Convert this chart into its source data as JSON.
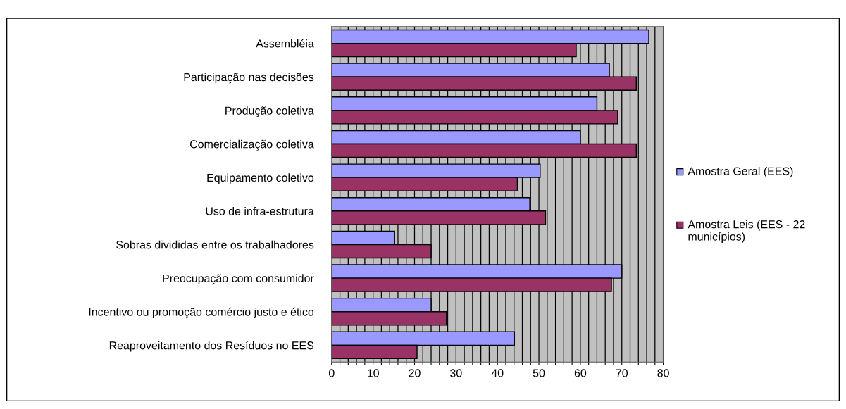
{
  "chart_data": {
    "type": "bar",
    "orientation": "horizontal",
    "categories": [
      "Assembléia",
      "Participação nas decisões",
      "Produção coletiva",
      "Comercialização coletiva",
      "Equipamento coletivo",
      "Uso de infra-estrutura",
      "Sobras divididas entre os trabalhadores",
      "Preocupação com consumidor",
      "Incentivo ou promoção comércio justo e ético",
      "Reaproveitamento dos Resíduos no EES"
    ],
    "series": [
      {
        "name": "Amostra Geral (EES)",
        "color": "#9999ff",
        "values": [
          76.5,
          67,
          64,
          60,
          50.3,
          47.8,
          15.2,
          70,
          24,
          44.1
        ]
      },
      {
        "name": "Amostra Leis (EES - 22 municípios)",
        "color": "#993366",
        "values": [
          59,
          73.5,
          69,
          73.5,
          44.8,
          51.6,
          24,
          67.5,
          27.7,
          20.6
        ]
      }
    ],
    "xlim": [
      0,
      80
    ],
    "xticks": [
      0,
      {
        "value": 2,
        "label": null
      },
      {
        "value": 4,
        "label": null
      },
      {
        "value": 6,
        "label": null
      },
      {
        "value": 8,
        "label": null
      },
      10,
      {
        "value": 12,
        "label": null
      },
      {
        "value": 14,
        "label": null
      },
      {
        "value": 16,
        "label": null
      },
      {
        "value": 18,
        "label": null
      },
      20,
      {
        "value": 22,
        "label": null
      },
      {
        "value": 24,
        "label": null
      },
      {
        "value": 26,
        "label": null
      },
      {
        "value": 28,
        "label": null
      },
      30,
      {
        "value": 32,
        "label": null
      },
      {
        "value": 34,
        "label": null
      },
      {
        "value": 36,
        "label": null
      },
      {
        "value": 38,
        "label": null
      },
      40,
      {
        "value": 42,
        "label": null
      },
      {
        "value": 44,
        "label": null
      },
      {
        "value": 46,
        "label": null
      },
      {
        "value": 48,
        "label": null
      },
      50,
      {
        "value": 52,
        "label": null
      },
      {
        "value": 54,
        "label": null
      },
      {
        "value": 56,
        "label": null
      },
      {
        "value": 58,
        "label": null
      },
      60,
      {
        "value": 62,
        "label": null
      },
      {
        "value": 64,
        "label": null
      },
      {
        "value": 66,
        "label": null
      },
      {
        "value": 68,
        "label": null
      },
      70,
      {
        "value": 72,
        "label": null
      },
      {
        "value": 74,
        "label": null
      },
      {
        "value": 76,
        "label": null
      },
      {
        "value": 78,
        "label": null
      },
      80
    ],
    "grid": "x",
    "legend": "right"
  }
}
